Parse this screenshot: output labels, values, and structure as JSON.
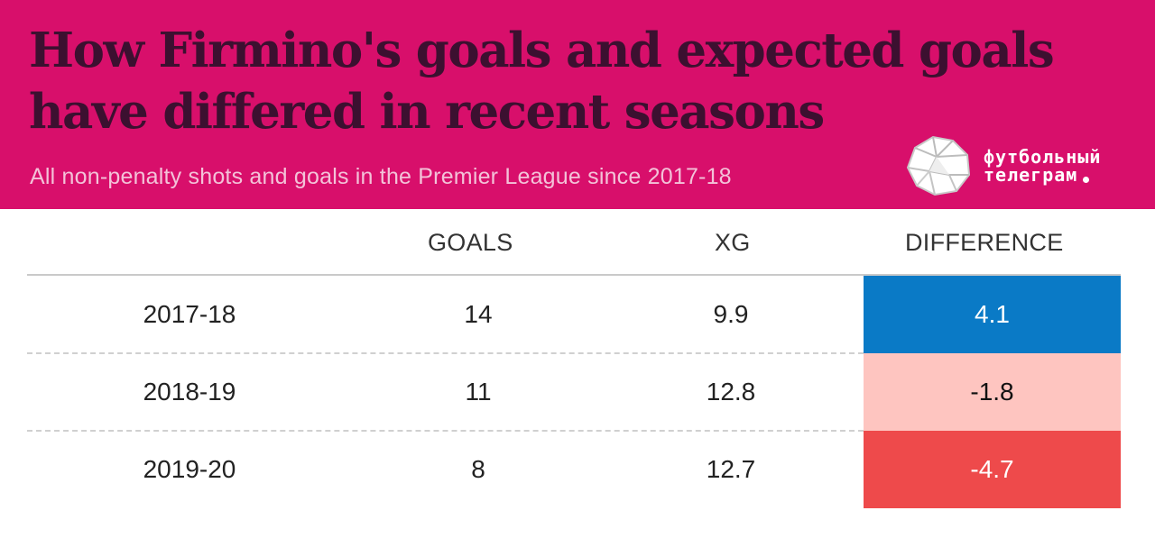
{
  "header": {
    "title": "How Firmino's goals and expected goals have differed in recent seasons",
    "subtitle": "All non-penalty shots and goals in the Premier League since 2017-18",
    "background_color": "#d80f6b"
  },
  "watermark": {
    "line1": "футбольный",
    "line2": "телеграм"
  },
  "chart_data": {
    "type": "table",
    "columns": [
      "",
      "GOALS",
      "XG",
      "DIFFERENCE"
    ],
    "rows": [
      {
        "season": "2017-18",
        "goals": "14",
        "xg": "9.9",
        "difference": "4.1",
        "color": "#0a7ac6",
        "text_color": "#ffffff"
      },
      {
        "season": "2018-19",
        "goals": "11",
        "xg": "12.8",
        "difference": "-1.8",
        "color": "#fec5c0",
        "text_color": "#111111"
      },
      {
        "season": "2019-20",
        "goals": "8",
        "xg": "12.7",
        "difference": "-4.7",
        "color": "#ee4a4b",
        "text_color": "#ffffff"
      }
    ]
  }
}
